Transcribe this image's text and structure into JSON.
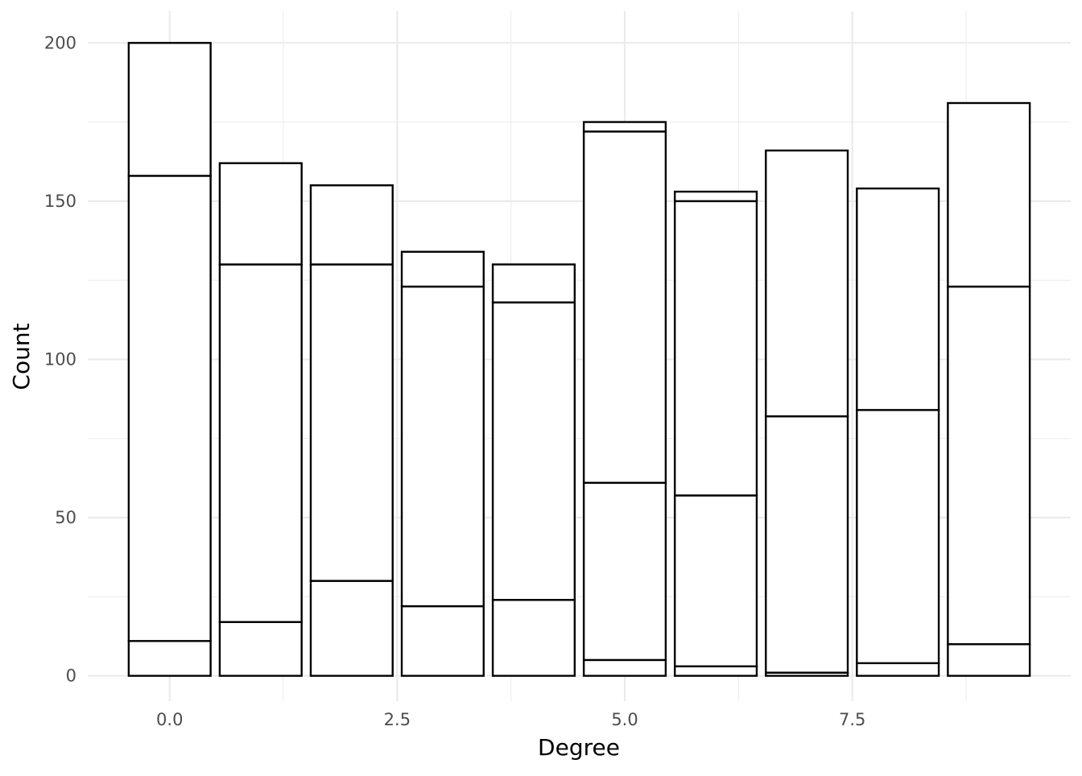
{
  "chart_data": {
    "type": "bar",
    "stacked": true,
    "title": "",
    "xlabel": "Degree",
    "ylabel": "Count",
    "xlim": [
      -0.9,
      9.9
    ],
    "ylim": [
      -8,
      210
    ],
    "x_ticks": [
      0.0,
      2.5,
      5.0,
      7.5
    ],
    "x_tick_labels": [
      "0.0",
      "2.5",
      "5.0",
      "7.5"
    ],
    "y_ticks": [
      0,
      50,
      100,
      150,
      200
    ],
    "y_tick_labels": [
      "0",
      "50",
      "100",
      "150",
      "200"
    ],
    "grid": true,
    "legend": "none",
    "bar_fill": "#ffffff",
    "bar_stroke": "#000000",
    "grid_color": "#ebebeb",
    "categories": [
      0,
      1,
      2,
      3,
      4,
      5,
      6,
      7,
      8,
      9
    ],
    "series": [
      {
        "values": [
          11,
          17,
          30,
          22,
          24,
          5,
          3,
          1,
          4,
          10
        ]
      },
      {
        "values": [
          147,
          113,
          100,
          101,
          94,
          56,
          54,
          81,
          80,
          113
        ]
      },
      {
        "values": [
          42,
          32,
          25,
          11,
          12,
          111,
          93,
          84,
          70,
          58
        ]
      },
      {
        "values": [
          0,
          0,
          0,
          0,
          0,
          3,
          3,
          0,
          0,
          0
        ]
      }
    ],
    "totals": [
      200,
      162,
      155,
      134,
      130,
      175,
      153,
      166,
      154,
      181
    ]
  }
}
